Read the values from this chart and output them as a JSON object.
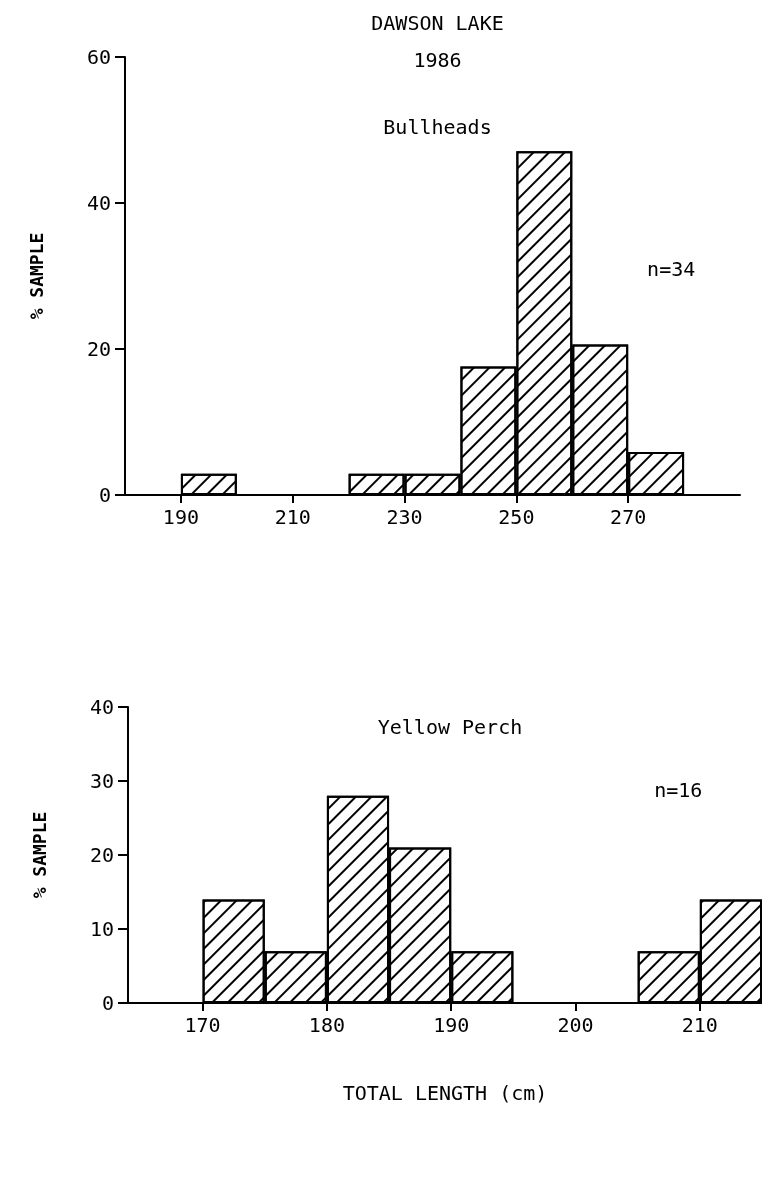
{
  "chart_data": [
    {
      "type": "histogram",
      "title": "DAWSON LAKE",
      "subtitle": "1986",
      "ylabel": "% SAMPLE",
      "annotations": [
        "Bullheads",
        "n=34"
      ],
      "bins": [
        190,
        200,
        210,
        220,
        230,
        240,
        250,
        260,
        270,
        280
      ],
      "values": [
        2.9,
        0,
        0,
        2.9,
        2.9,
        17.6,
        47.1,
        20.6,
        5.9
      ],
      "color": "#ffffff",
      "xlim": [
        180,
        290
      ],
      "xticks": [
        190,
        210,
        230,
        250,
        270
      ],
      "ylim": [
        0,
        60
      ],
      "yticks": [
        0,
        20,
        40,
        60
      ],
      "grid": false
    },
    {
      "type": "histogram",
      "title": "Yellow Perch",
      "xlabel": "TOTAL LENGTH (cm)",
      "ylabel": "% SAMPLE",
      "annotations": [
        "n=16"
      ],
      "bins": [
        170,
        175,
        180,
        185,
        190,
        195,
        200,
        205,
        210,
        215
      ],
      "values": [
        14,
        7,
        28,
        21,
        7,
        0,
        0,
        7,
        14
      ],
      "color": "#ffffff",
      "xlim": [
        164,
        215
      ],
      "xticks": [
        170,
        180,
        190,
        200,
        210
      ],
      "ylim": [
        0,
        40
      ],
      "yticks": [
        0,
        10,
        20,
        30,
        40
      ],
      "grid": false
    }
  ]
}
